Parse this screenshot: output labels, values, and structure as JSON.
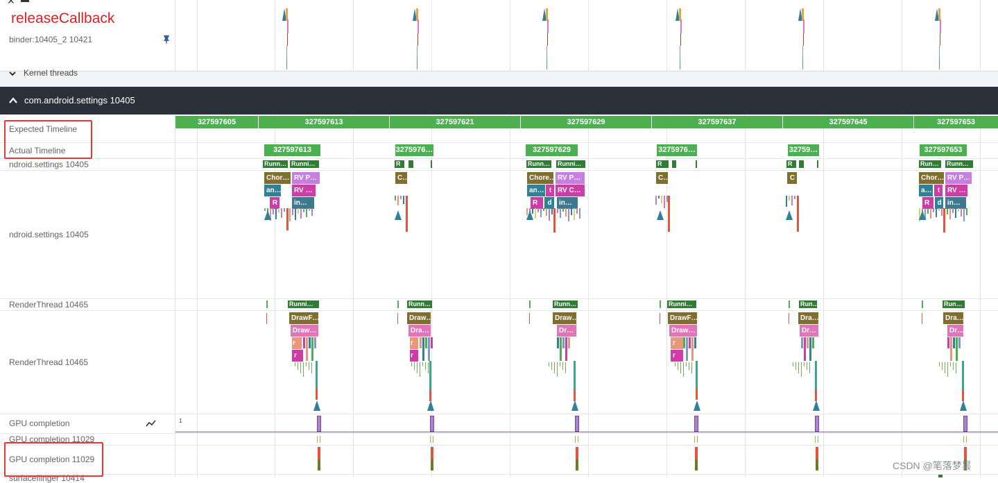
{
  "annotation": {
    "title": "releaseCallback",
    "color": "#e02020"
  },
  "watermark": "CSDN @笔落梦昙",
  "top_track": {
    "label": "binder:10405_2 10421",
    "pin_icon": "pin-icon"
  },
  "kernel_threads": {
    "label": "Kernel threads",
    "icon": "chevron-down-icon"
  },
  "process_header": {
    "label": "com.android.settings 10405",
    "icon": "chevron-up-icon",
    "bg": "#2b313a"
  },
  "tracks": {
    "expected": "Expected Timeline",
    "actual": "Actual Timeline",
    "main_summary": "ndroid.settings 10405",
    "main": "ndroid.settings 10405",
    "render_summary": "RenderThread 10465",
    "render": "RenderThread 10465",
    "gpu": "GPU completion",
    "gpu_summary": "GPU completion 11029",
    "gpu2": "GPU completion 11029",
    "last": "surfaceflinger 10414"
  },
  "gpu_scale": "1",
  "gpu_chart_icon": "line-chart-icon",
  "expected_frames": [
    "327597605",
    "327597613",
    "327597621",
    "327597629",
    "327597637",
    "327597645",
    "327597653"
  ],
  "actual_frames": [
    "327597613",
    "3275976…",
    "327597629",
    "3275976…",
    "32759…",
    "327597653"
  ],
  "main_chips": [
    [
      "Runn…",
      "Runni…"
    ],
    [
      "R"
    ],
    [
      "Runn…",
      "Runni…"
    ],
    [
      "R"
    ],
    [
      "R"
    ],
    [
      "Run…",
      "Runn…"
    ]
  ],
  "main_slices": [
    [
      "Chor…",
      "RV P…",
      "an…",
      "RV …",
      "R",
      "in…"
    ],
    [
      "C…"
    ],
    [
      "Chore…",
      "RV P…",
      "an…",
      "t",
      "RV C…",
      "R",
      "d",
      "in…"
    ],
    [
      "C…"
    ],
    [
      "C"
    ],
    [
      "Chor…",
      "RV P…",
      "a…",
      "t",
      "RV …",
      "R",
      "d",
      "in…"
    ]
  ],
  "render_chips": [
    "Runni…",
    "Runn…",
    "Runn…",
    "Runni…",
    "Run…",
    "Run…"
  ],
  "render_slices": [
    [
      "DrawF…",
      "Draw…",
      "r",
      "r"
    ],
    [
      "Draw…",
      "Dra…",
      "r",
      "r"
    ],
    [
      "Draw…",
      "Dr…"
    ],
    [
      "DrawF…",
      "Draw…",
      "r",
      "r"
    ],
    [
      "Dra…",
      "Dr…"
    ],
    [
      "Dra…",
      "Dr…"
    ]
  ],
  "colors": {
    "green": "#4caf50",
    "dark_green": "#2e7d32",
    "olive": "#7f6f2e",
    "violet": "#c57fe0",
    "teal": "#2f8197",
    "magenta": "#cf3ca8",
    "steel": "#3d7a8f",
    "pink": "#e274b8",
    "salmon": "#e9967a",
    "purple": "#b07fd6",
    "red": "#e5533d"
  }
}
